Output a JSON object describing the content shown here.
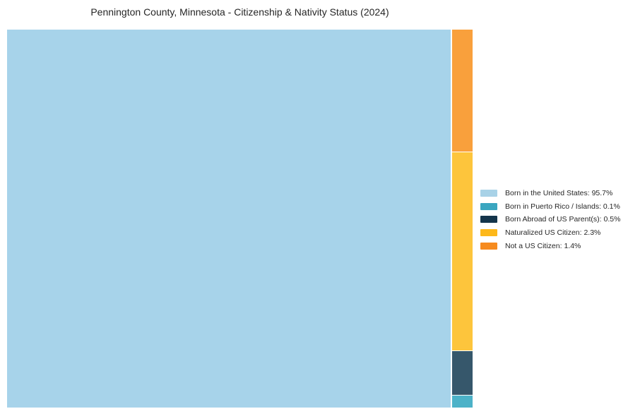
{
  "chart_data": {
    "type": "treemap",
    "title": "Pennington County, Minnesota - Citizenship & Nativity Status (2024)",
    "categories": [
      "Born in the United States",
      "Born in Puerto Rico / Islands",
      "Born Abroad of US Parent(s)",
      "Naturalized US Citizen",
      "Not a US Citizen"
    ],
    "values": [
      95.7,
      0.1,
      0.5,
      2.3,
      1.4
    ],
    "unit": "%",
    "legend_position": "right",
    "layout_hint": "single large block fills left side; minor categories stacked in a narrow right column, top to bottom: Not a US Citizen, Naturalized US Citizen, Born Abroad of US Parent(s), Born in Puerto Rico / Islands",
    "background_color": "#ffffff",
    "block_colors": {
      "born_in_us": "#a7d3ea",
      "puerto_rico_islands": "#4cb2c8",
      "born_abroad_us_parents": "#36576b",
      "naturalized": "#fdc53c",
      "not_citizen": "#f9a03c"
    }
  },
  "legend": {
    "items": [
      {
        "label": "Born in the United States: 95.7%",
        "value_pct": 95.7,
        "color": "#a8d2e7"
      },
      {
        "label": "Born in Puerto Rico / Islands: 0.1%",
        "value_pct": 0.1,
        "color": "#3aa6c0"
      },
      {
        "label": "Born Abroad of US Parent(s): 0.5%",
        "value_pct": 0.5,
        "color": "#14354b"
      },
      {
        "label": "Naturalized US Citizen: 2.3%",
        "value_pct": 2.3,
        "color": "#fdb81a"
      },
      {
        "label": "Not a US Citizen: 1.4%",
        "value_pct": 1.4,
        "color": "#f68b1f"
      }
    ]
  }
}
